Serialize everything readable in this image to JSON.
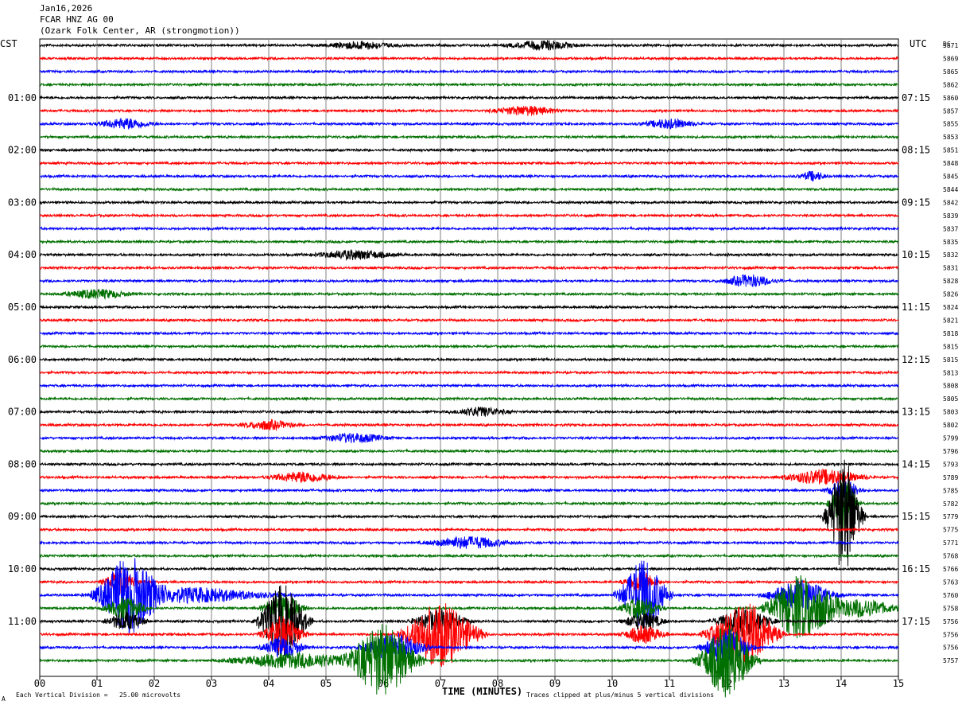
{
  "header": {
    "date": "Jan16,2026",
    "station": "FCAR HNZ AG 00",
    "location": "(Ozark Folk Center, AR (strongmotion))"
  },
  "left_tz": "CST",
  "right_tz": "UTC",
  "dc_label": "DC",
  "footer": {
    "scale_note": "Each Vertical Division =   25.00 microvolts",
    "xlabel": "TIME (MINUTES)",
    "clip_note": "Traces clipped at plus/minus 5 vertical divisions",
    "corner_mark": "A"
  },
  "chart_data": {
    "type": "line",
    "title": "FCAR HNZ AG 00 (Ozark Folk Center, AR (strongmotion))",
    "xlabel": "TIME (MINUTES)",
    "xlim": [
      0,
      15
    ],
    "xticks": [
      "00",
      "01",
      "02",
      "03",
      "04",
      "05",
      "06",
      "07",
      "08",
      "09",
      "10",
      "11",
      "12",
      "13",
      "14",
      "15"
    ],
    "trace_minutes": 15,
    "trace_colors": [
      "#000000",
      "#ff0000",
      "#0000ff",
      "#007000"
    ],
    "left_labels": [
      {
        "row": 4,
        "text": "01:00"
      },
      {
        "row": 8,
        "text": "02:00"
      },
      {
        "row": 12,
        "text": "03:00"
      },
      {
        "row": 16,
        "text": "04:00"
      },
      {
        "row": 20,
        "text": "05:00"
      },
      {
        "row": 24,
        "text": "06:00"
      },
      {
        "row": 28,
        "text": "07:00"
      },
      {
        "row": 32,
        "text": "08:00"
      },
      {
        "row": 36,
        "text": "09:00"
      },
      {
        "row": 40,
        "text": "10:00"
      },
      {
        "row": 44,
        "text": "11:00"
      }
    ],
    "right_labels": [
      {
        "row": 4,
        "text": "07:15"
      },
      {
        "row": 8,
        "text": "08:15"
      },
      {
        "row": 12,
        "text": "09:15"
      },
      {
        "row": 16,
        "text": "10:15"
      },
      {
        "row": 20,
        "text": "11:15"
      },
      {
        "row": 24,
        "text": "12:15"
      },
      {
        "row": 28,
        "text": "13:15"
      },
      {
        "row": 32,
        "text": "14:15"
      },
      {
        "row": 36,
        "text": "15:15"
      },
      {
        "row": 40,
        "text": "16:15"
      },
      {
        "row": 44,
        "text": "17:15"
      }
    ],
    "dc_offsets": [
      "5871",
      "5869",
      "5865",
      "5862",
      "5860",
      "5857",
      "5855",
      "5853",
      "5851",
      "5848",
      "5845",
      "5844",
      "5842",
      "5839",
      "5837",
      "5835",
      "5832",
      "5831",
      "5828",
      "5826",
      "5824",
      "5821",
      "5818",
      "5815",
      "5815",
      "5813",
      "5808",
      "5805",
      "5803",
      "5802",
      "5799",
      "5796",
      "5793",
      "5789",
      "5785",
      "5782",
      "5779",
      "5775",
      "5771",
      "5768",
      "5766",
      "5763",
      "5760",
      "5758",
      "5756",
      "5756",
      "5756",
      "5757"
    ],
    "events": [
      {
        "row": 36,
        "minute": 14.05,
        "amp": 8,
        "dur": 0.5
      },
      {
        "row": 35,
        "minute": 14.05,
        "amp": 3.5,
        "dur": 0.4
      },
      {
        "row": 34,
        "minute": 14.05,
        "amp": 1.5,
        "dur": 0.5
      },
      {
        "row": 33,
        "minute": 13.7,
        "amp": 1,
        "dur": 1.2
      },
      {
        "row": 42,
        "minute": 1.55,
        "amp": 5,
        "dur": 0.9
      },
      {
        "row": 41,
        "minute": 1.4,
        "amp": 1.5,
        "dur": 0.5
      },
      {
        "row": 43,
        "minute": 1.5,
        "amp": 1.5,
        "dur": 0.6
      },
      {
        "row": 44,
        "minute": 1.5,
        "amp": 1.2,
        "dur": 0.6
      },
      {
        "row": 42,
        "minute": 2.6,
        "amp": 1,
        "dur": 2.5
      },
      {
        "row": 44,
        "minute": 4.25,
        "amp": 5,
        "dur": 0.7
      },
      {
        "row": 43,
        "minute": 4.25,
        "amp": 2,
        "dur": 0.6
      },
      {
        "row": 45,
        "minute": 4.25,
        "amp": 2.5,
        "dur": 0.6
      },
      {
        "row": 46,
        "minute": 4.25,
        "amp": 1.5,
        "dur": 0.6
      },
      {
        "row": 47,
        "minute": 4.5,
        "amp": 1,
        "dur": 2
      },
      {
        "row": 47,
        "minute": 6.0,
        "amp": 5,
        "dur": 1.0
      },
      {
        "row": 46,
        "minute": 6.2,
        "amp": 2,
        "dur": 0.9
      },
      {
        "row": 45,
        "minute": 7.0,
        "amp": 4.5,
        "dur": 1.1
      },
      {
        "row": 44,
        "minute": 7.0,
        "amp": 1.5,
        "dur": 0.8
      },
      {
        "row": 42,
        "minute": 10.55,
        "amp": 5,
        "dur": 0.7
      },
      {
        "row": 41,
        "minute": 10.5,
        "amp": 1.5,
        "dur": 0.5
      },
      {
        "row": 43,
        "minute": 10.5,
        "amp": 1.5,
        "dur": 0.6
      },
      {
        "row": 44,
        "minute": 10.55,
        "amp": 1.2,
        "dur": 0.6
      },
      {
        "row": 45,
        "minute": 10.55,
        "amp": 1.2,
        "dur": 0.6
      },
      {
        "row": 47,
        "minute": 12.0,
        "amp": 5,
        "dur": 0.8
      },
      {
        "row": 46,
        "minute": 12.0,
        "amp": 2.5,
        "dur": 0.7
      },
      {
        "row": 45,
        "minute": 12.3,
        "amp": 4.5,
        "dur": 1.0
      },
      {
        "row": 44,
        "minute": 12.3,
        "amp": 2,
        "dur": 0.8
      },
      {
        "row": 43,
        "minute": 13.3,
        "amp": 4.5,
        "dur": 1.0
      },
      {
        "row": 42,
        "minute": 13.3,
        "amp": 2,
        "dur": 1.0
      },
      {
        "row": 43,
        "minute": 14.3,
        "amp": 1.2,
        "dur": 1.2
      },
      {
        "row": 38,
        "minute": 7.5,
        "amp": 0.8,
        "dur": 1.2
      },
      {
        "row": 30,
        "minute": 5.5,
        "amp": 0.6,
        "dur": 1
      },
      {
        "row": 29,
        "minute": 4.0,
        "amp": 0.6,
        "dur": 0.8
      },
      {
        "row": 33,
        "minute": 4.6,
        "amp": 0.7,
        "dur": 1
      },
      {
        "row": 18,
        "minute": 12.4,
        "amp": 0.8,
        "dur": 0.8
      },
      {
        "row": 28,
        "minute": 7.7,
        "amp": 0.6,
        "dur": 0.8
      },
      {
        "row": 6,
        "minute": 1.5,
        "amp": 0.7,
        "dur": 0.8
      },
      {
        "row": 6,
        "minute": 11.0,
        "amp": 0.6,
        "dur": 0.8
      },
      {
        "row": 5,
        "minute": 8.5,
        "amp": 0.6,
        "dur": 1.0
      },
      {
        "row": 16,
        "minute": 5.5,
        "amp": 0.6,
        "dur": 1.2
      },
      {
        "row": 19,
        "minute": 1.0,
        "amp": 0.6,
        "dur": 1.0
      },
      {
        "row": 10,
        "minute": 13.5,
        "amp": 0.6,
        "dur": 0.4
      },
      {
        "row": 0,
        "minute": 8.8,
        "amp": 0.6,
        "dur": 1.0
      },
      {
        "row": 0,
        "minute": 5.6,
        "amp": 0.5,
        "dur": 1.0
      }
    ]
  }
}
